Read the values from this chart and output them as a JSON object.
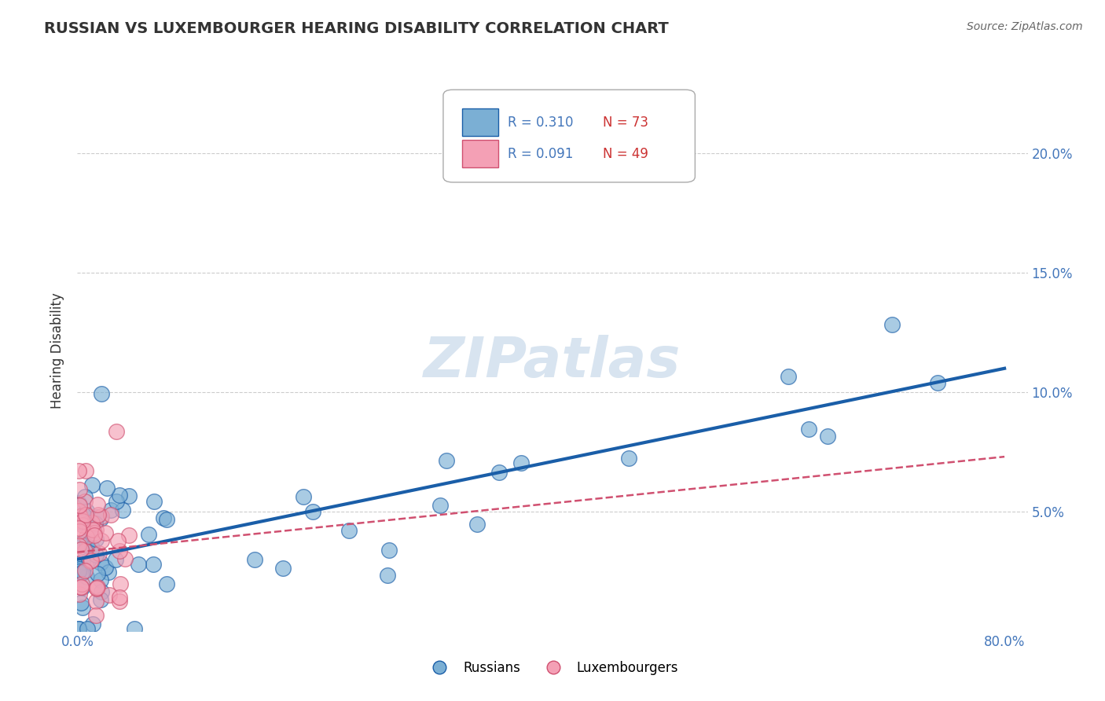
{
  "title": "RUSSIAN VS LUXEMBOURGER HEARING DISABILITY CORRELATION CHART",
  "source": "Source: ZipAtlas.com",
  "ylabel": "Hearing Disability",
  "ytick_labels": [
    "5.0%",
    "10.0%",
    "15.0%",
    "20.0%"
  ],
  "ytick_values": [
    0.05,
    0.1,
    0.15,
    0.2
  ],
  "xlim": [
    0.0,
    0.82
  ],
  "ylim": [
    0.0,
    0.235
  ],
  "title_color": "#333333",
  "title_fontsize": 14,
  "source_color": "#666666",
  "source_fontsize": 10,
  "russian_color": "#7bafd4",
  "russian_edge_color": "#1a5ea8",
  "russian_line_color": "#1a5ea8",
  "luxembourger_color": "#f4a0b5",
  "luxembourger_edge_color": "#d05070",
  "luxembourger_line_color": "#d05070",
  "axis_color": "#4477bb",
  "grid_color": "#cccccc",
  "watermark_text": "ZIPatlas",
  "watermark_color": "#d8e4f0",
  "background_color": "#ffffff",
  "legend_r_color": "#4477bb",
  "legend_n_color": "#cc3333",
  "russian_r": "0.310",
  "russian_n": "73",
  "luxembourger_r": "0.091",
  "luxembourger_n": "49",
  "russian_line_x": [
    0.0,
    0.8
  ],
  "russian_line_y": [
    0.03,
    0.11
  ],
  "luxembourger_line_x": [
    0.0,
    0.8
  ],
  "luxembourger_line_y": [
    0.033,
    0.073
  ]
}
